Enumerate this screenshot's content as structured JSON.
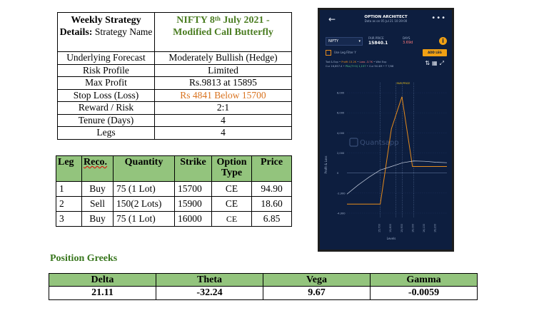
{
  "strategy": {
    "header_label_bold": "Weekly Strategy Details:",
    "header_label_rest": " Strategy Name",
    "title_main": "NIFTY 8",
    "title_sup": "th",
    "title_rest": " July 2021 - Modified Call Butterfly",
    "rows": [
      {
        "label": "Underlying Forecast",
        "value": "Moderately Bullish (Hedge)"
      },
      {
        "label": "Risk Profile",
        "value": "Limited"
      },
      {
        "label": "Max Profit",
        "value": "Rs.9813 at 15895"
      },
      {
        "label": "Stop Loss (Loss)",
        "value": "Rs 4841 Below 15700",
        "highlight": true
      },
      {
        "label": "Reward / Risk",
        "value": "2:1"
      },
      {
        "label": "Tenure (Days)",
        "value": "4"
      },
      {
        "label": "Legs",
        "value": "4"
      }
    ],
    "highlight_color": "#d9731f"
  },
  "legs": {
    "headers": [
      "Leg",
      "Reco.",
      "Quantity",
      "Strike",
      "Option Type",
      "Price"
    ],
    "rows": [
      [
        "1",
        "Buy",
        "75 (1 Lot)",
        "15700",
        "CE",
        "94.90"
      ],
      [
        "2",
        "Sell",
        "150(2 Lots)",
        "15900",
        "CE",
        "18.60"
      ],
      [
        "3",
        "Buy",
        "75 (1 Lot)",
        "16000",
        "CE",
        "6.85"
      ]
    ]
  },
  "greeks": {
    "title": "Position Greeks",
    "headers": [
      "Delta",
      "Theta",
      "Vega",
      "Gamma"
    ],
    "values": [
      "21.11",
      "-32.24",
      "9.67",
      "-0.0059"
    ],
    "header_bg": "#93c47d",
    "title_color": "#38761d"
  },
  "phone": {
    "app_title": "OPTION ARCHITECT",
    "as_of": "Data as on 05 Jul 21 10:39:00",
    "back_icon": "arrow-left-icon",
    "more_icon": "more-dots-icon",
    "symbol": "NIFTY",
    "fut_label": "FAIR PRICE",
    "fut_value": "15840.1",
    "days_label": "DAYS",
    "days_value": "3.69d",
    "info_icon": "info-icon",
    "use_legs_label": "Use Leg Filter Y",
    "add_leg_label": "ADD LEG",
    "summary_line1": [
      "Tod & Exp",
      "Profit 13.2K",
      "Loss -3.7K",
      "Wtd Exp"
    ],
    "summary_line2": [
      "Cur 16,857.4",
      "P&L(T+0) 1,157",
      "Cur 94 4M",
      "T 7/08"
    ],
    "tool_icons": [
      "sort-icon",
      "table-icon",
      "expand-icon"
    ],
    "fair_price_label": "FAIR PRICE",
    "y_axis_label": "Profit & Loss",
    "x_axis_label": "Levels",
    "watermark": "Quantsapp",
    "chart_data": {
      "type": "line",
      "x_ticks": [
        "15,700",
        "15,800",
        "15,900",
        "16,000",
        "16,100",
        "16,200"
      ],
      "y_ticks": [
        "8,000",
        "6,000",
        "4,000",
        "2,000",
        "0",
        "-2,000",
        "-4,000"
      ],
      "ylim": [
        -4500,
        9000
      ],
      "xlim": [
        15400,
        16300
      ],
      "series": [
        {
          "color": "#e68b1c",
          "points": [
            [
              15400,
              -3100
            ],
            [
              15700,
              -3100
            ],
            [
              15800,
              4400
            ],
            [
              15895,
              7600
            ],
            [
              15990,
              650
            ],
            [
              16300,
              650
            ]
          ]
        },
        {
          "color": "#c8d0e0",
          "points": [
            [
              15400,
              -2100
            ],
            [
              15500,
              -1200
            ],
            [
              15600,
              -400
            ],
            [
              15700,
              300
            ],
            [
              15800,
              650
            ],
            [
              15900,
              1020
            ],
            [
              16000,
              1200
            ],
            [
              16100,
              1170
            ],
            [
              16200,
              1080
            ],
            [
              16300,
              1030
            ]
          ]
        }
      ],
      "vlines": [
        15700,
        15840,
        15900,
        16000
      ]
    }
  }
}
